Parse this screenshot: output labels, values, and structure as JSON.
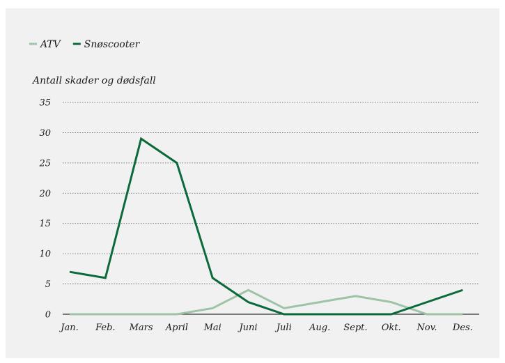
{
  "chart_data": {
    "type": "line",
    "title": "",
    "ylabel": "Antall skader og dødsfall",
    "xlabel": "",
    "categories": [
      "Jan.",
      "Feb.",
      "Mars",
      "April",
      "Mai",
      "Juni",
      "Juli",
      "Aug.",
      "Sept.",
      "Okt.",
      "Nov.",
      "Des."
    ],
    "ylim": [
      0,
      35
    ],
    "yticks": [
      0,
      5,
      10,
      15,
      20,
      25,
      30,
      35
    ],
    "grid": true,
    "legend_position": "top-left",
    "series": [
      {
        "name": "ATV",
        "color": "#9dc4a6",
        "values": [
          0,
          0,
          0,
          0,
          1,
          4,
          1,
          2,
          3,
          2,
          0,
          0
        ]
      },
      {
        "name": "Snøscooter",
        "color": "#0b6a3a",
        "values": [
          7,
          6,
          29,
          25,
          6,
          2,
          0,
          0,
          0,
          0,
          2,
          4
        ]
      }
    ]
  }
}
